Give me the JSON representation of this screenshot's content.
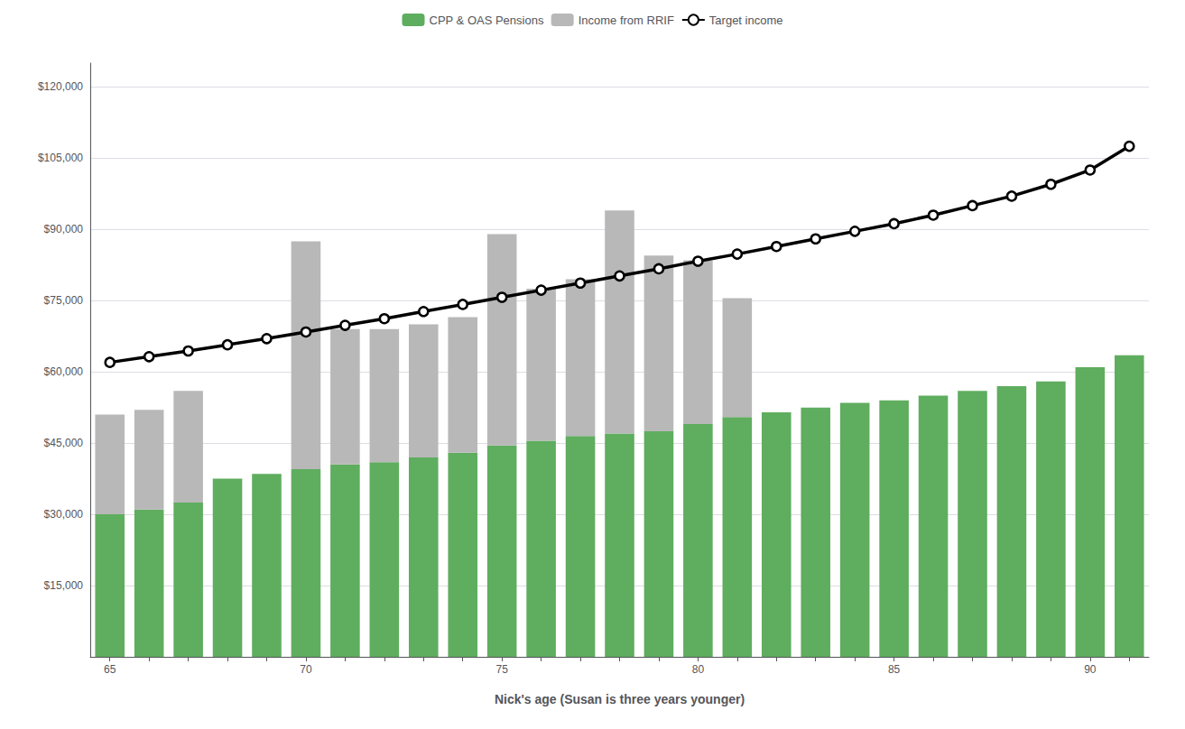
{
  "chart_data": {
    "type": "bar",
    "xlabel": "Nick's age (Susan is three years younger)",
    "categories": [
      "65",
      null,
      null,
      null,
      null,
      "70",
      null,
      null,
      null,
      null,
      "75",
      null,
      null,
      null,
      null,
      "80",
      null,
      null,
      null,
      null,
      "85",
      null,
      null,
      null,
      null,
      "90",
      null
    ],
    "series": [
      {
        "name": "CPP & OAS Pensions",
        "type": "bar",
        "color": "#5fad5f",
        "values": [
          30000,
          31000,
          32500,
          37500,
          38500,
          39500,
          40500,
          41000,
          42000,
          43000,
          44500,
          45500,
          46500,
          47000,
          47500,
          49000,
          50500,
          51500,
          52500,
          53500,
          54000,
          55000,
          56000,
          57000,
          58000,
          61000,
          63500
        ]
      },
      {
        "name": "Income from RRIF",
        "type": "bar",
        "color": "#b8b8b8",
        "values": [
          21000,
          21000,
          23500,
          0,
          0,
          48000,
          28500,
          28000,
          28000,
          28500,
          44500,
          32000,
          33000,
          47000,
          37000,
          34500,
          25000,
          0,
          0,
          0,
          0,
          0,
          0,
          0,
          0,
          0,
          0
        ]
      },
      {
        "name": "Target income",
        "type": "line",
        "color": "#000000",
        "marker": "circle",
        "line_style": "solid",
        "values": [
          62000,
          63200,
          64400,
          65700,
          67000,
          68400,
          69800,
          71200,
          72700,
          74200,
          75700,
          77200,
          78700,
          80200,
          81700,
          83300,
          84800,
          86400,
          88000,
          89600,
          91200,
          93000,
          95000,
          97000,
          99500,
          102500,
          107500
        ]
      }
    ],
    "stacked": true,
    "ylim": [
      0,
      125000
    ],
    "yticks": [
      {
        "value": 15000,
        "label": "$15,000"
      },
      {
        "value": 30000,
        "label": "$30,000"
      },
      {
        "value": 45000,
        "label": "$45,000"
      },
      {
        "value": 60000,
        "label": "$60,000"
      },
      {
        "value": 75000,
        "label": "$75,000"
      },
      {
        "value": 90000,
        "label": "$90,000"
      },
      {
        "value": 105000,
        "label": "$105,000"
      },
      {
        "value": 120000,
        "label": "$120,000"
      }
    ],
    "grid": true,
    "legend": "top"
  }
}
